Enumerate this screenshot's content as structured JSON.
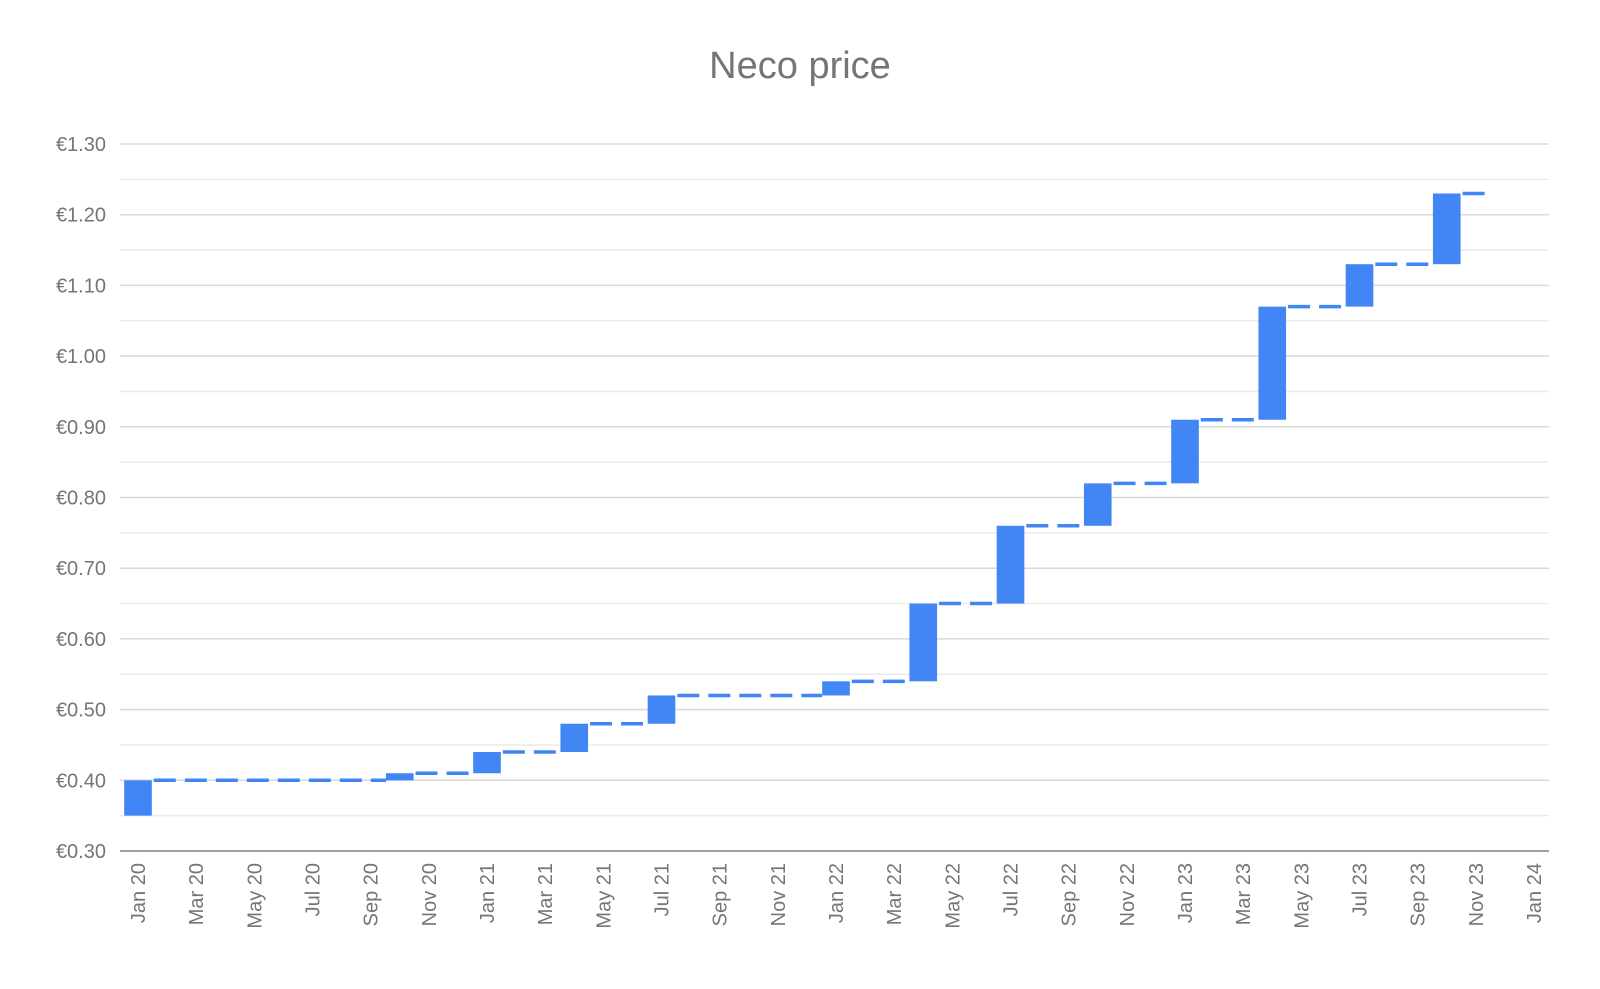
{
  "chart_data": {
    "type": "waterfall",
    "title": "Neco price",
    "xlabel": "",
    "ylabel": "",
    "ylim": [
      0.3,
      1.3
    ],
    "grid": true,
    "y_tick_labels": [
      "€0.30",
      "€0.40",
      "€0.50",
      "€0.60",
      "€0.70",
      "€0.80",
      "€0.90",
      "€1.00",
      "€1.10",
      "€1.20",
      "€1.30"
    ],
    "y_tick_values": [
      0.3,
      0.4,
      0.5,
      0.6,
      0.7,
      0.8,
      0.9,
      1.0,
      1.1,
      1.2,
      1.3
    ],
    "x_tick_labels": [
      "Jan 20",
      "Mar 20",
      "May 20",
      "Jul 20",
      "Sep 20",
      "Nov 20",
      "Jan 21",
      "Mar 21",
      "May 21",
      "Jul 21",
      "Sep 21",
      "Nov 21",
      "Jan 22",
      "Mar 22",
      "May 22",
      "Jul 22",
      "Sep 22",
      "Nov 22",
      "Jan 23",
      "Mar 23",
      "May 23",
      "Jul 23",
      "Sep 23",
      "Nov 23",
      "Jan 24"
    ],
    "x_range": [
      "2020-01",
      "2024-01"
    ],
    "steps": [
      {
        "date": "2020-01",
        "from": 0.35,
        "to": 0.4
      },
      {
        "date": "2020-10",
        "from": 0.4,
        "to": 0.41
      },
      {
        "date": "2021-01",
        "from": 0.41,
        "to": 0.44
      },
      {
        "date": "2021-04",
        "from": 0.44,
        "to": 0.48
      },
      {
        "date": "2021-07",
        "from": 0.48,
        "to": 0.52
      },
      {
        "date": "2022-01",
        "from": 0.52,
        "to": 0.54
      },
      {
        "date": "2022-04",
        "from": 0.54,
        "to": 0.65
      },
      {
        "date": "2022-07",
        "from": 0.65,
        "to": 0.76
      },
      {
        "date": "2022-10",
        "from": 0.76,
        "to": 0.82
      },
      {
        "date": "2023-01",
        "from": 0.82,
        "to": 0.91
      },
      {
        "date": "2023-04",
        "from": 0.91,
        "to": 1.07
      },
      {
        "date": "2023-07",
        "from": 1.07,
        "to": 1.13
      },
      {
        "date": "2023-10",
        "from": 1.13,
        "to": 1.23
      }
    ],
    "levels": [
      {
        "from": "2020-01",
        "to": "2020-10",
        "value": 0.4
      },
      {
        "from": "2020-10",
        "to": "2021-01",
        "value": 0.41
      },
      {
        "from": "2021-01",
        "to": "2021-04",
        "value": 0.44
      },
      {
        "from": "2021-04",
        "to": "2021-07",
        "value": 0.48
      },
      {
        "from": "2021-07",
        "to": "2022-01",
        "value": 0.52
      },
      {
        "from": "2022-01",
        "to": "2022-04",
        "value": 0.54
      },
      {
        "from": "2022-04",
        "to": "2022-07",
        "value": 0.65
      },
      {
        "from": "2022-07",
        "to": "2022-10",
        "value": 0.76
      },
      {
        "from": "2022-10",
        "to": "2023-01",
        "value": 0.82
      },
      {
        "from": "2023-01",
        "to": "2023-04",
        "value": 0.91
      },
      {
        "from": "2023-04",
        "to": "2023-07",
        "value": 1.07
      },
      {
        "from": "2023-07",
        "to": "2023-10",
        "value": 1.13
      },
      {
        "from": "2023-10",
        "to": "2023-12",
        "value": 1.23
      }
    ],
    "colors": {
      "series": "#4285f4",
      "grid": "#d9d9d9",
      "axis": "#9e9e9e",
      "text": "#757575"
    }
  }
}
